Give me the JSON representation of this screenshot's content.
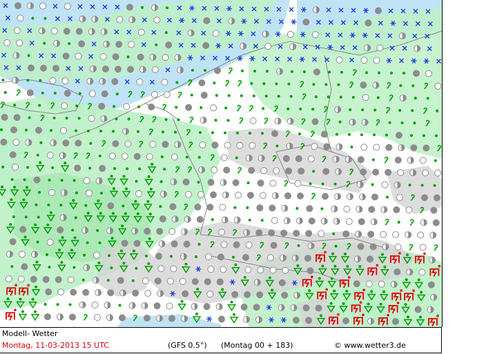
{
  "footer": {
    "title": "Modell- Wetter",
    "date_line": "Montag, 11-03-2013  15 UTC",
    "model": "(GFS 0.5°)",
    "run": "(Montag 00 + 183)",
    "credit": "© www.wetter3.de"
  },
  "colors": {
    "sea": "#bfe3f5",
    "land": "#ffffff",
    "precip": "#bdf0c6",
    "precip_heavy": "#a6e7b2",
    "mountains": "#d4d4d4",
    "borders": "#707070",
    "rain": "#00a000",
    "snow": "#1a3ee0",
    "cloud": "#8c8c8c",
    "thunder": "#e00000",
    "date_text": "#d80000"
  },
  "legend_symbols": [
    "rain-dot",
    "drizzle-comma",
    "snow-cross",
    "snow-star",
    "cloud-cover-circle",
    "rain-shower-triangle",
    "thunderstorm"
  ]
}
